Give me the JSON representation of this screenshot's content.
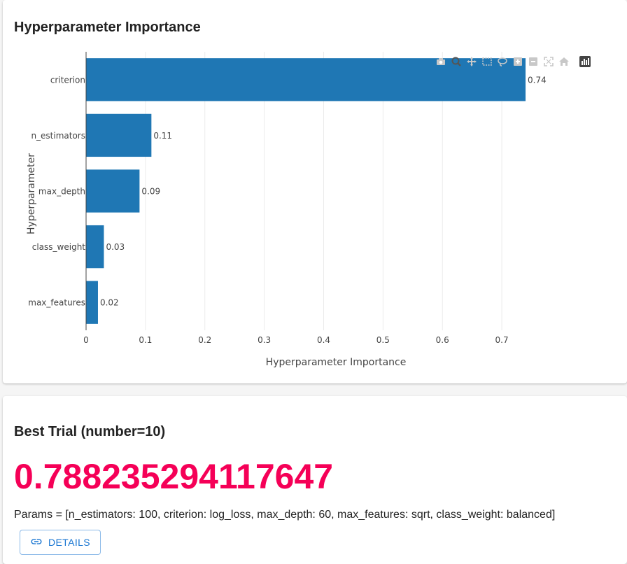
{
  "importance_card": {
    "title": "Hyperparameter Importance"
  },
  "modebar": {
    "icons": [
      "camera-icon",
      "zoom-icon",
      "pan-icon",
      "box-select-icon",
      "lasso-icon",
      "zoom-in-icon",
      "zoom-out-icon",
      "autoscale-icon",
      "reset-axes-icon",
      "plotly-logo-icon"
    ]
  },
  "chart_data": {
    "type": "bar",
    "orientation": "horizontal",
    "categories": [
      "criterion",
      "n_estimators",
      "max_depth",
      "class_weight",
      "max_features"
    ],
    "values": [
      0.74,
      0.11,
      0.09,
      0.03,
      0.02
    ],
    "data_labels": [
      "0.74",
      "0.11",
      "0.09",
      "0.03",
      "0.02"
    ],
    "xlabel": "Hyperparameter Importance",
    "ylabel": "Hyperparameter",
    "xlim": [
      0,
      0.78
    ],
    "xticks": [
      0,
      0.1,
      0.2,
      0.3,
      0.4,
      0.5,
      0.6,
      0.7
    ],
    "xtick_labels": [
      "0",
      "0.1",
      "0.2",
      "0.3",
      "0.4",
      "0.5",
      "0.6",
      "0.7"
    ],
    "bar_color": "#1f77b4",
    "grid": true
  },
  "best_trial": {
    "title": "Best Trial (number=10)",
    "value": "0.788235294117647",
    "value_color": "#f50057",
    "params": "Params = [n_estimators: 100, criterion: log_loss, max_depth: 60, max_features: sqrt, class_weight: balanced]",
    "details_label": "DETAILS",
    "details_icon": "link-icon"
  }
}
